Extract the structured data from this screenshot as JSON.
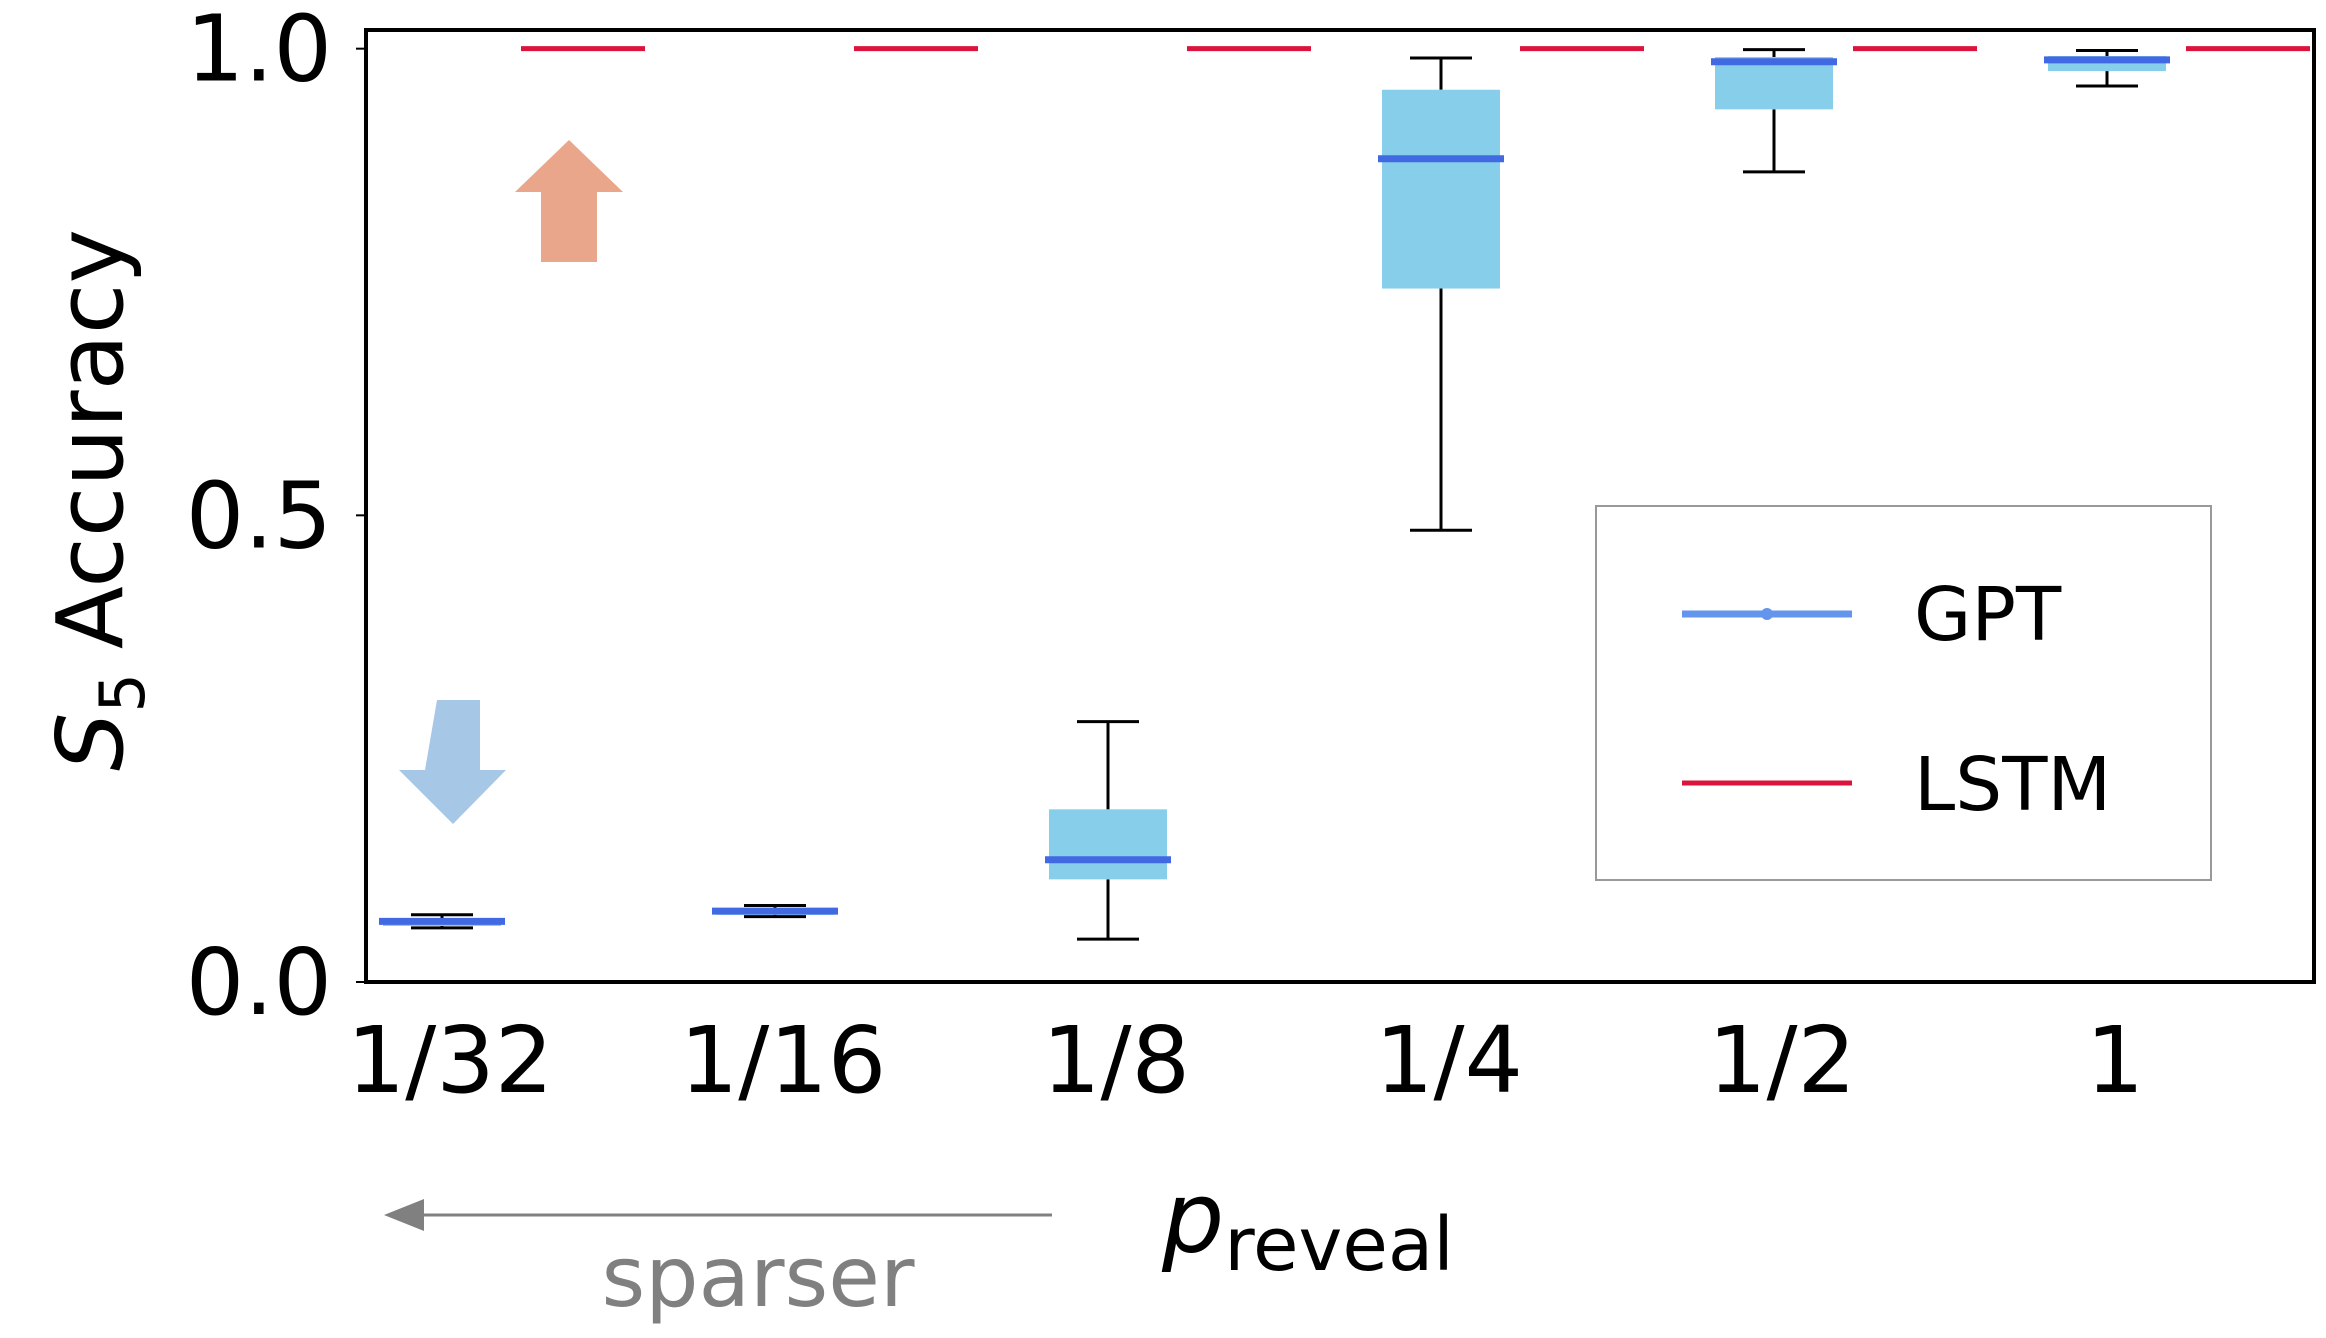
{
  "chart_data": {
    "type": "box",
    "categories": [
      "1/32",
      "1/16",
      "1/8",
      "1/4",
      "1/2",
      "1"
    ],
    "ylabel_symbol": "S",
    "ylabel_sub": "5",
    "ylabel_text": "Accuracy",
    "xlabel_symbol": "p",
    "xlabel_sub": "reveal",
    "ylim": [
      0.0,
      1.02
    ],
    "yticks": [
      {
        "value": 0.0,
        "label": "0.0"
      },
      {
        "value": 0.5,
        "label": "0.5"
      },
      {
        "value": 1.0,
        "label": "1.0"
      }
    ],
    "grid": false,
    "legend_position": "center-right",
    "series": [
      {
        "name": "GPT",
        "color": "#4169e1",
        "box_color": "#87ceeb",
        "legend_line_color": "#6495ed",
        "boxes": [
          {
            "whislo": 0.058,
            "q1": 0.06,
            "med": 0.065,
            "q3": 0.068,
            "whishi": 0.072
          },
          {
            "whislo": 0.07,
            "q1": 0.072,
            "med": 0.076,
            "q3": 0.079,
            "whishi": 0.082
          },
          {
            "whislo": 0.046,
            "q1": 0.11,
            "med": 0.131,
            "q3": 0.185,
            "whishi": 0.279
          },
          {
            "whislo": 0.484,
            "q1": 0.743,
            "med": 0.882,
            "q3": 0.956,
            "whishi": 0.99
          },
          {
            "whislo": 0.868,
            "q1": 0.935,
            "med": 0.986,
            "q3": 0.991,
            "whishi": 0.999
          },
          {
            "whislo": 0.96,
            "q1": 0.976,
            "med": 0.988,
            "q3": 0.992,
            "whishi": 0.998
          }
        ]
      },
      {
        "name": "LSTM",
        "color": "#dc143c",
        "values": [
          1.0,
          1.0,
          1.0,
          1.0,
          1.0,
          1.0
        ]
      }
    ],
    "annotations": {
      "arrow_text": "sparser",
      "up_arrow_color": "#e9a68a",
      "down_arrow_color": "#a7c7e7",
      "sparser_color": "#808080"
    }
  }
}
